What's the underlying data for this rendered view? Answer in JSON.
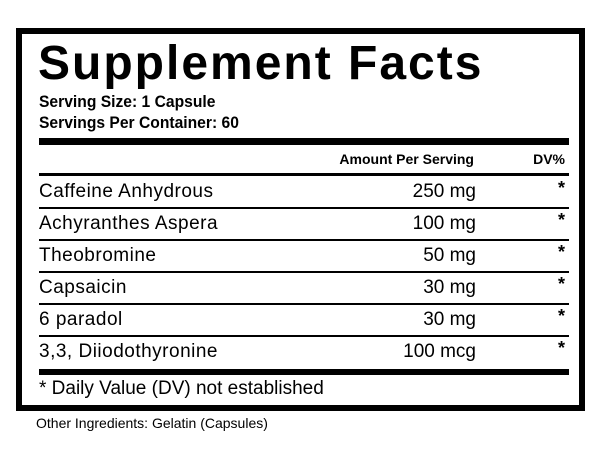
{
  "title": "Supplement Facts",
  "serving_size": "Serving Size: 1 Capsule",
  "servings_per_container": "Servings Per Container: 60",
  "header": {
    "amount": "Amount Per Serving",
    "dv": "DV%"
  },
  "rows": [
    {
      "name": "Caffeine Anhydrous",
      "amount": "250 mg",
      "dv": "*"
    },
    {
      "name": "Achyranthes Aspera",
      "amount": "100 mg",
      "dv": "*"
    },
    {
      "name": "Theobromine",
      "amount": "50 mg",
      "dv": "*"
    },
    {
      "name": "Capsaicin",
      "amount": "30 mg",
      "dv": "*"
    },
    {
      "name": "6 paradol",
      "amount": "30 mg",
      "dv": "*"
    },
    {
      "name": "3,3, Diiodothyronine",
      "amount": "100 mcg",
      "dv": "*"
    }
  ],
  "footnote": "* Daily Value (DV) not established",
  "other_ingredients": "Other Ingredients: Gelatin (Capsules)"
}
